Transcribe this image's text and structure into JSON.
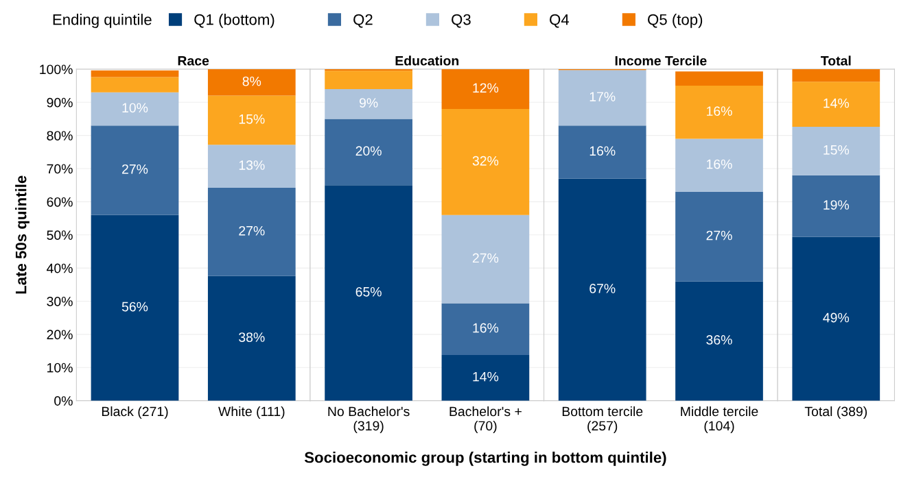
{
  "chart_data": [
    {
      "type": "bar",
      "stacked": true,
      "title": "Race",
      "ylabel": "Late 50s quintile",
      "xlabel": "Socioeconomic group (starting in bottom quintile)",
      "legend": "top",
      "legend_title": "Ending quintile",
      "grid": "y",
      "categories": [
        "Black (271)",
        "White (111)"
      ],
      "ylim": [
        0,
        100
      ],
      "yticks": [
        {
          "value": 0,
          "label": "0%"
        },
        {
          "value": 10,
          "label": "10%"
        },
        {
          "value": 20,
          "label": "20%"
        },
        {
          "value": 30,
          "label": "30%"
        },
        {
          "value": 40,
          "label": "40%"
        },
        {
          "value": 50,
          "label": "50%"
        },
        {
          "value": 60,
          "label": "60%"
        },
        {
          "value": 70,
          "label": "70%"
        },
        {
          "value": 80,
          "label": "80%"
        },
        {
          "value": 90,
          "label": "90%"
        },
        {
          "value": 100,
          "label": "100%"
        }
      ],
      "series": [
        {
          "name": "Q1 (bottom)",
          "color": "#003f7a",
          "values": [
            56,
            37.6
          ],
          "value_labels": [
            "56%",
            "38%"
          ]
        },
        {
          "name": "Q2",
          "color": "#3a6b9f",
          "values": [
            27,
            26.6
          ],
          "value_labels": [
            "27%",
            "27%"
          ]
        },
        {
          "name": "Q3",
          "color": "#adc3dc",
          "values": [
            10,
            13
          ],
          "value_labels": [
            "10%",
            "13%"
          ]
        },
        {
          "name": "Q4",
          "color": "#fca61f",
          "values": [
            4.6,
            14.8
          ],
          "value_labels": [
            null,
            "15%"
          ]
        },
        {
          "name": "Q5 (top)",
          "color": "#f27900",
          "values": [
            2,
            8
          ],
          "value_labels": [
            null,
            "8%"
          ]
        }
      ]
    },
    {
      "type": "bar",
      "stacked": true,
      "title": "Education",
      "grid": "y",
      "tick_labels": "x",
      "categories": [
        "No Bachelor's\n(319)",
        "Bachelor's +\n(70)"
      ],
      "ylim": [
        0,
        100
      ],
      "series": [
        {
          "color": "#003f7a",
          "values": [
            65,
            13.8
          ],
          "value_labels": [
            "65%",
            "14%"
          ]
        },
        {
          "color": "#3a6b9f",
          "values": [
            20,
            15.6
          ],
          "value_labels": [
            "20%",
            "16%"
          ]
        },
        {
          "color": "#adc3dc",
          "values": [
            9,
            26.6
          ],
          "value_labels": [
            "9%",
            "27%"
          ]
        },
        {
          "color": "#fca61f",
          "values": [
            5.5,
            32
          ],
          "value_labels": [
            null,
            "32%"
          ]
        },
        {
          "color": "#f27900",
          "values": [
            0.5,
            12
          ],
          "value_labels": [
            null,
            "12%"
          ]
        }
      ]
    },
    {
      "type": "bar",
      "stacked": true,
      "title": "Income Tercile",
      "grid": "y",
      "tick_labels": "x",
      "categories": [
        "Bottom tercile\n(257)",
        "Middle tercile\n(104)"
      ],
      "ylim": [
        0,
        100
      ],
      "series": [
        {
          "color": "#003f7a",
          "values": [
            67,
            36
          ],
          "value_labels": [
            "67%",
            "36%"
          ]
        },
        {
          "color": "#3a6b9f",
          "values": [
            16,
            27
          ],
          "value_labels": [
            "16%",
            "27%"
          ]
        },
        {
          "color": "#adc3dc",
          "values": [
            16.7,
            16
          ],
          "value_labels": [
            "17%",
            "16%"
          ]
        },
        {
          "color": "#fca61f",
          "values": [
            0,
            16
          ],
          "value_labels": [
            null,
            "16%"
          ]
        },
        {
          "color": "#f27900",
          "values": [
            0.3,
            4.3
          ],
          "value_labels": [
            null,
            null
          ]
        }
      ]
    },
    {
      "type": "bar",
      "stacked": true,
      "title": "Total",
      "grid": "y",
      "tick_labels": "x",
      "categories": [
        "Total (389)"
      ],
      "ylim": [
        0,
        100
      ],
      "series": [
        {
          "color": "#003f7a",
          "values": [
            49.4
          ],
          "value_labels": [
            "49%"
          ]
        },
        {
          "color": "#3a6b9f",
          "values": [
            18.6
          ],
          "value_labels": [
            "19%"
          ]
        },
        {
          "color": "#adc3dc",
          "values": [
            14.6
          ],
          "value_labels": [
            "15%"
          ]
        },
        {
          "color": "#fca61f",
          "values": [
            13.6
          ],
          "value_labels": [
            "14%"
          ]
        },
        {
          "color": "#f27900",
          "values": [
            3.8
          ],
          "value_labels": [
            null
          ]
        }
      ]
    }
  ]
}
